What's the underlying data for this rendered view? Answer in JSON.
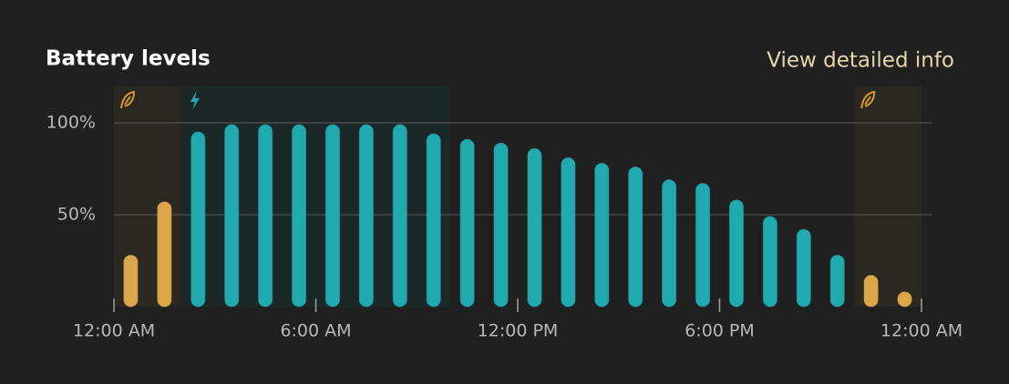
{
  "chart_data": {
    "type": "bar",
    "title": "Battery levels",
    "link": "View detailed info",
    "x": [
      0.5,
      1.5,
      2.5,
      3.5,
      4.5,
      5.5,
      6.5,
      7.5,
      8.5,
      9.5,
      10.5,
      11.5,
      12.5,
      13.5,
      14.5,
      15.5,
      16.5,
      17.5,
      18.5,
      19.5,
      20.5,
      21.5,
      22.5,
      23.5
    ],
    "values": [
      28,
      57,
      95,
      99,
      99,
      99,
      99,
      99,
      99,
      94,
      91,
      89,
      86,
      81,
      78,
      76,
      69,
      67,
      58,
      49,
      42,
      28,
      17,
      8
    ],
    "colors": [
      "#dca64a",
      "#dca64a",
      "#21a9b0",
      "#21a9b0",
      "#21a9b0",
      "#21a9b0",
      "#21a9b0",
      "#21a9b0",
      "#21a9b0",
      "#21a9b0",
      "#21a9b0",
      "#21a9b0",
      "#21a9b0",
      "#21a9b0",
      "#21a9b0",
      "#21a9b0",
      "#21a9b0",
      "#21a9b0",
      "#21a9b0",
      "#21a9b0",
      "#21a9b0",
      "#21a9b0",
      "#dca64a",
      "#dca64a"
    ],
    "xlim": [
      0,
      24
    ],
    "xticks": [
      {
        "value": 0,
        "label": "12:00 AM"
      },
      {
        "value": 6,
        "label": "6:00 AM"
      },
      {
        "value": 12,
        "label": "12:00 PM"
      },
      {
        "value": 18,
        "label": "6:00 PM"
      },
      {
        "value": 24,
        "label": "12:00 AM"
      }
    ],
    "ylim": [
      0,
      100
    ],
    "yticks": [
      {
        "value": 50,
        "label": "50%"
      },
      {
        "value": 100,
        "label": "100%"
      }
    ],
    "grid": true,
    "regions": [
      {
        "xlim": [
          0,
          2
        ],
        "color": "#2b2822",
        "icon": "leaf"
      },
      {
        "xlim": [
          2,
          10
        ],
        "color": "#1c2827",
        "icon": "bolt"
      },
      {
        "xlim": [
          22,
          24
        ],
        "color": "#2b2822",
        "icon": "leaf"
      }
    ]
  }
}
